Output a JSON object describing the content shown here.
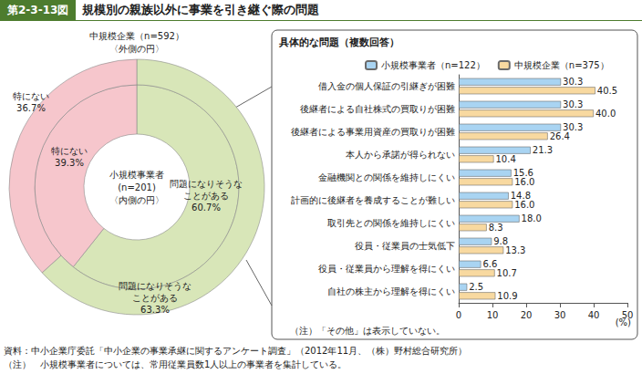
{
  "header": {
    "number": "第2-3-13図",
    "title": "規模別の親族以外に事業を引き継ぐ際の問題"
  },
  "footer": {
    "source": "資料：中小企業庁委託「中小企業の事業承継に関するアンケート調査」（2012年11月、（株）野村総合研究所）",
    "note": "（注）　小規模事業者については、常用従業員数1人以上の事業者を集計している。"
  },
  "chart_data": [
    {
      "type": "pie",
      "categories": [
        "問題になりそうな\nことがある",
        "特にない"
      ],
      "colors": [
        "#d8e6b8",
        "#f6c6cc"
      ],
      "data_labels": true,
      "series": [
        {
          "name": "小規模事業者\n(n=201)\n〈内側の円〉",
          "values": [
            60.7,
            39.3
          ],
          "value_labels": [
            "60.7%",
            "39.3%"
          ]
        },
        {
          "name": "中規模企業（n=592）\n〈外側の円〉",
          "values": [
            63.3,
            36.7
          ],
          "value_labels": [
            "63.3%",
            "36.7%"
          ]
        }
      ]
    },
    {
      "type": "bar",
      "orientation": "horizontal",
      "title": "具体的な問題（複数回答）",
      "note": "（注）「その他」は表示していない。",
      "x_label": "(%)",
      "categories": [
        "借入金の個人保証の引継ぎが困難",
        "後継者による自社株式の買取りが困難",
        "後継者による事業用資産の買取りが困難",
        "本人から承諾が得られない",
        "金融機関との関係を維持しにくい",
        "計画的に後継者を養成することが難しい",
        "取引先との関係を維持しにくい",
        "役員・従業員の士気低下",
        "役員・従業員から理解を得にくい",
        "自社の株主から理解を得にくい"
      ],
      "series": [
        {
          "name": "小規模事業者（n=122）",
          "color": "#a9d4f2",
          "values": [
            30.3,
            30.3,
            30.3,
            21.3,
            15.6,
            14.8,
            18.0,
            9.8,
            6.6,
            2.5
          ],
          "value_labels": [
            "30.3",
            "30.3",
            "30.3",
            "21.3",
            "15.6",
            "14.8",
            "18.0",
            "9.8",
            "6.6",
            "2.5"
          ]
        },
        {
          "name": "中規模企業（n=375）",
          "color": "#f8d9a0",
          "values": [
            40.5,
            40.0,
            26.4,
            10.4,
            16.0,
            16.0,
            8.3,
            13.3,
            10.7,
            10.9
          ],
          "value_labels": [
            "40.5",
            "40.0",
            "26.4",
            "10.4",
            "16.0",
            "16.0",
            "8.3",
            "13.3",
            "10.7",
            "10.9"
          ]
        }
      ],
      "xlim": [
        0,
        50
      ],
      "xticks": [
        0,
        10,
        20,
        30,
        40,
        50
      ],
      "data_labels": true,
      "grid": false,
      "legend": "top"
    }
  ]
}
